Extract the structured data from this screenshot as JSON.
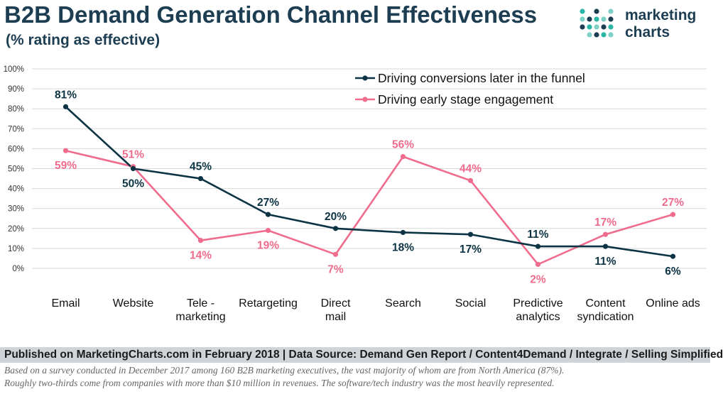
{
  "title": "B2B Demand Generation Channel Effectiveness",
  "subtitle": "(% rating as effective)",
  "logo": {
    "line1": "marketing",
    "line2": "charts",
    "icon": "dot-grid-logo-icon"
  },
  "colors": {
    "conversions": "#0c3444",
    "engagement": "#f06c8c",
    "title": "#1d3e52",
    "grid": "#d9d9d9"
  },
  "chart_data": {
    "type": "line",
    "categories": [
      [
        "Email"
      ],
      [
        "Website"
      ],
      [
        "Tele -",
        "marketing"
      ],
      [
        "Retargeting"
      ],
      [
        "Direct",
        "mail"
      ],
      [
        "Search"
      ],
      [
        "Social"
      ],
      [
        "Predictive",
        "analytics"
      ],
      [
        "Content",
        "syndication"
      ],
      [
        "Online ads"
      ]
    ],
    "series": [
      {
        "name": "Driving conversions later in the funnel",
        "values": [
          81,
          50,
          45,
          27,
          20,
          18,
          17,
          11,
          11,
          6
        ],
        "labels": [
          "81%",
          "50%",
          "45%",
          "27%",
          "20%",
          "18%",
          "17%",
          "11%",
          "11%",
          "6%"
        ]
      },
      {
        "name": "Driving early stage engagement",
        "values": [
          59,
          51,
          14,
          19,
          7,
          56,
          44,
          2,
          17,
          27
        ],
        "labels": [
          "59%",
          "51%",
          "14%",
          "19%",
          "7%",
          "56%",
          "44%",
          "2%",
          "17%",
          "27%"
        ]
      }
    ],
    "yticks": [
      "0%",
      "10%",
      "20%",
      "30%",
      "40%",
      "50%",
      "60%",
      "70%",
      "80%",
      "90%",
      "100%"
    ],
    "ylim": [
      0,
      100
    ],
    "grid": true,
    "legend": "top-right"
  },
  "footer": {
    "source": "Published on MarketingCharts.com in February 2018 | Data Source: Demand Gen Report / Content4Demand / Integrate / Selling Simplified",
    "note1": "Based on a survey conducted in December 2017 among 160 B2B marketing executives, the vast majority of whom are from North America (87%).",
    "note2": "Roughly two-thirds come from companies with more than $10 million in revenues. The software/tech industry was the most heavily represented."
  }
}
